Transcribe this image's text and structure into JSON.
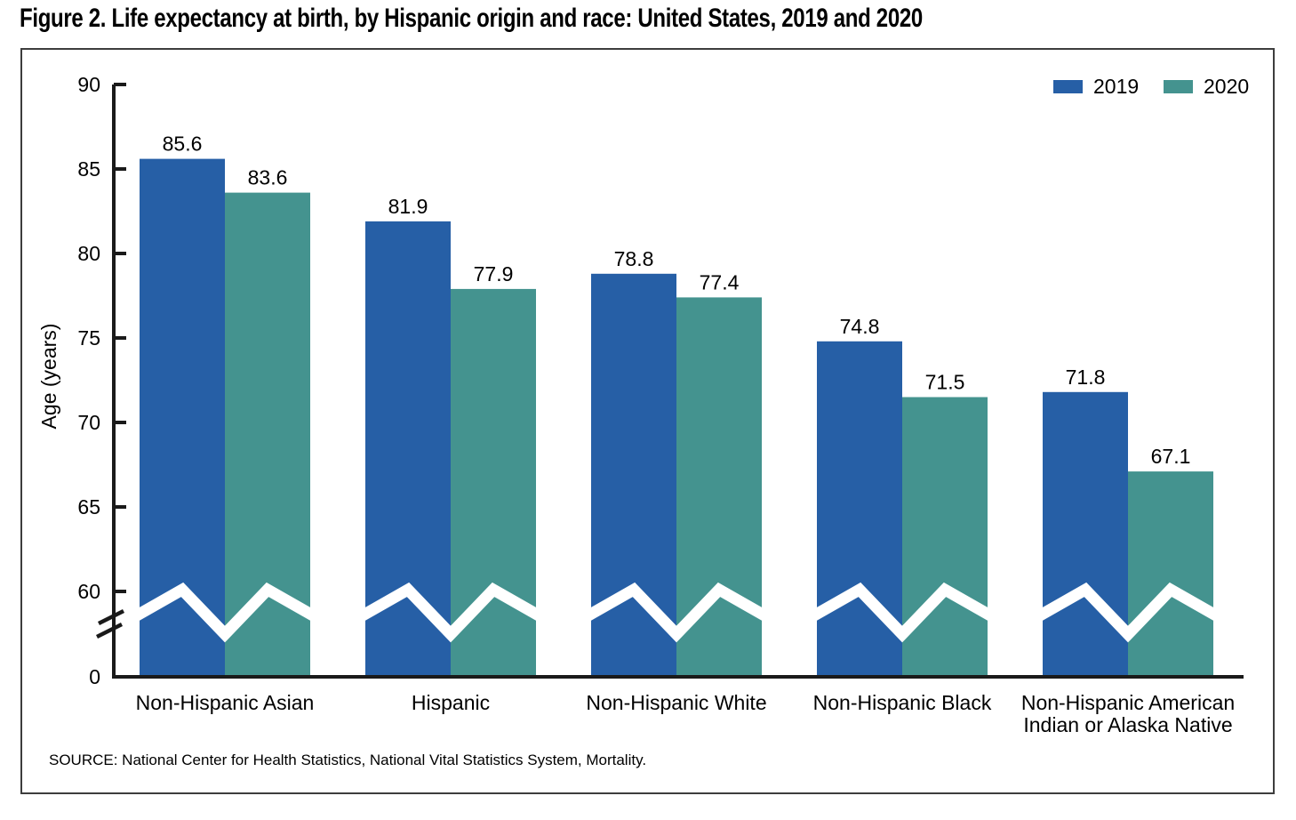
{
  "title": "Figure 2. Life expectancy at birth, by Hispanic origin and race: United States, 2019 and 2020",
  "source": "SOURCE: National Center for Health Statistics, National Vital Statistics System, Mortality.",
  "legend": {
    "items": [
      {
        "label": "2019",
        "color": "#265FA6"
      },
      {
        "label": "2020",
        "color": "#44938F"
      }
    ],
    "position": "top-right"
  },
  "chart_data": {
    "type": "bar",
    "title": "Life expectancy at birth, by Hispanic origin and race: United States, 2019 and 2020",
    "categories": [
      "Non-Hispanic Asian",
      "Hispanic",
      "Non-Hispanic White",
      "Non-Hispanic Black",
      "Non-Hispanic American Indian or Alaska Native"
    ],
    "category_lines": [
      [
        "Non-Hispanic Asian"
      ],
      [
        "Hispanic"
      ],
      [
        "Non-Hispanic White"
      ],
      [
        "Non-Hispanic Black"
      ],
      [
        "Non-Hispanic American",
        "Indian or Alaska Native"
      ]
    ],
    "series": [
      {
        "name": "2019",
        "color": "#265FA6",
        "values": [
          85.6,
          81.9,
          78.8,
          74.8,
          71.8
        ]
      },
      {
        "name": "2020",
        "color": "#44938F",
        "values": [
          83.6,
          77.9,
          77.4,
          71.5,
          67.1
        ]
      }
    ],
    "xlabel": "",
    "ylabel": "Age (years)",
    "yticks": [
      0,
      60,
      65,
      70,
      75,
      80,
      85,
      90
    ],
    "ylim_display": [
      60,
      90
    ],
    "axis_break": true,
    "grid": false,
    "legend_position": "top-right",
    "value_labels_shown": true,
    "axis_color": "#1a1a1a",
    "break_band_color": "#ffffff"
  }
}
